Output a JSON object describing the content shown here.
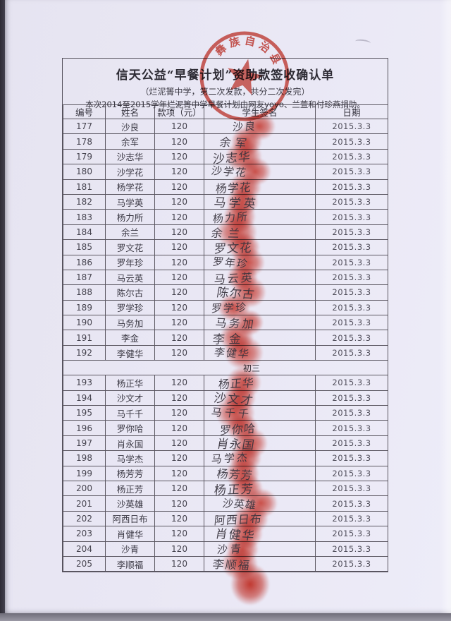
{
  "doc": {
    "title": "信天公益“早餐计划”资助款签收确认单",
    "subtitle": "（烂泥箐中学，第二次发款，共分二次发完）",
    "donor_line": "本次2014至2015学年烂泥箐中学早餐计划由网友yoyo、兰萱和付珍燕捐助。"
  },
  "stamp": {
    "arc_text": "彝族自治县",
    "color": "#cb372b"
  },
  "table": {
    "headers": [
      "编号",
      "姓名",
      "款项（元）",
      "学生签名",
      "日期"
    ],
    "section_divider": "初三",
    "rows": [
      {
        "no": "177",
        "name": "沙良",
        "amount": "120",
        "signature": "沙良",
        "date": "2015.3.3"
      },
      {
        "no": "178",
        "name": "余军",
        "amount": "120",
        "signature": "余军",
        "date": "2015.3.3"
      },
      {
        "no": "179",
        "name": "沙志华",
        "amount": "120",
        "signature": "沙志华",
        "date": "2015.3.3"
      },
      {
        "no": "180",
        "name": "沙学花",
        "amount": "120",
        "signature": "沙学花",
        "date": "2015.3.3"
      },
      {
        "no": "181",
        "name": "杨学花",
        "amount": "120",
        "signature": "杨学花",
        "date": "2015.3.3"
      },
      {
        "no": "182",
        "name": "马学英",
        "amount": "120",
        "signature": "马学英",
        "date": "2015.3.3"
      },
      {
        "no": "183",
        "name": "杨力所",
        "amount": "120",
        "signature": "杨力所",
        "date": "2015.3.3"
      },
      {
        "no": "184",
        "name": "余兰",
        "amount": "120",
        "signature": "余兰",
        "date": "2015.3.3"
      },
      {
        "no": "185",
        "name": "罗文花",
        "amount": "120",
        "signature": "罗文花",
        "date": "2015.3.3"
      },
      {
        "no": "186",
        "name": "罗年珍",
        "amount": "120",
        "signature": "罗年珍",
        "date": "2015.3.3"
      },
      {
        "no": "187",
        "name": "马云英",
        "amount": "120",
        "signature": "马云英",
        "date": "2015.3.3"
      },
      {
        "no": "188",
        "name": "陈尔古",
        "amount": "120",
        "signature": "陈尔古",
        "date": "2015.3.3"
      },
      {
        "no": "189",
        "name": "罗学珍",
        "amount": "120",
        "signature": "罗学珍",
        "date": "2015.3.3"
      },
      {
        "no": "190",
        "name": "马务加",
        "amount": "120",
        "signature": "马务加",
        "date": "2015.3.3"
      },
      {
        "no": "191",
        "name": "李金",
        "amount": "120",
        "signature": "李金",
        "date": "2015.3.3"
      },
      {
        "no": "192",
        "name": "李健华",
        "amount": "120",
        "signature": "李健华",
        "date": "2015.3.3"
      },
      {
        "no": "193",
        "name": "杨正华",
        "amount": "120",
        "signature": "杨正华",
        "date": "2015.3.3"
      },
      {
        "no": "194",
        "name": "沙文才",
        "amount": "120",
        "signature": "沙文才",
        "date": "2015.3.3"
      },
      {
        "no": "195",
        "name": "马千千",
        "amount": "120",
        "signature": "马千千",
        "date": "2015.3.3"
      },
      {
        "no": "196",
        "name": "罗你哈",
        "amount": "120",
        "signature": "罗你哈",
        "date": "2015.3.3"
      },
      {
        "no": "197",
        "name": "肖永国",
        "amount": "120",
        "signature": "肖永国",
        "date": "2015.3.3"
      },
      {
        "no": "198",
        "name": "马学杰",
        "amount": "120",
        "signature": "马学杰",
        "date": "2015.3.3"
      },
      {
        "no": "199",
        "name": "杨芳芳",
        "amount": "120",
        "signature": "杨芳芳",
        "date": "2015.3.3"
      },
      {
        "no": "200",
        "name": "杨正芳",
        "amount": "120",
        "signature": "杨正芳",
        "date": "2015.3.3"
      },
      {
        "no": "201",
        "name": "沙英雄",
        "amount": "120",
        "signature": "沙英雄",
        "date": "2015.3.3"
      },
      {
        "no": "202",
        "name": "阿西日布",
        "amount": "120",
        "signature": "阿西日布",
        "date": "2015.3.3"
      },
      {
        "no": "203",
        "name": "肖健华",
        "amount": "120",
        "signature": "肖健华",
        "date": "2015.3.3"
      },
      {
        "no": "204",
        "name": "沙青",
        "amount": "120",
        "signature": "沙青",
        "date": "2015.3.3"
      },
      {
        "no": "205",
        "name": "李顺福",
        "amount": "120",
        "signature": "李顺福",
        "date": "2015.3.3"
      }
    ]
  }
}
